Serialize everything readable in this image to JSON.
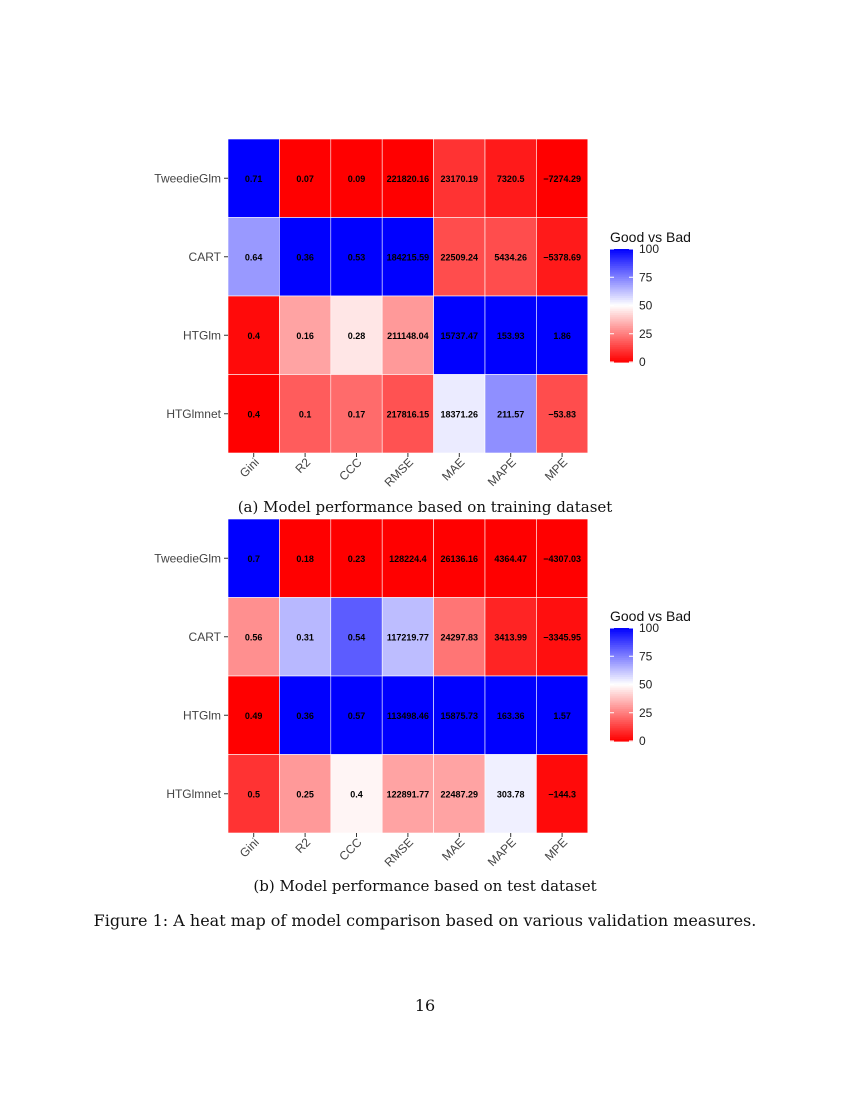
{
  "figure": {
    "caption": "Figure 1: A heat map of model comparison based on various validation measures.",
    "page_number": "16"
  },
  "legend": {
    "title": "Good vs Bad",
    "ticks": [
      "100",
      "75",
      "50",
      "25",
      "0"
    ],
    "colors": {
      "low": "#ff0000",
      "mid": "#ffffff",
      "high": "#0000ff"
    }
  },
  "panels": [
    {
      "caption": "(a) Model performance based on training dataset"
    },
    {
      "caption": "(b) Model performance based on test dataset"
    }
  ],
  "chart_data": [
    {
      "type": "heatmap",
      "title": "",
      "xlabel": "",
      "ylabel": "",
      "x_categories": [
        "Gini",
        "R2",
        "CCC",
        "RMSE",
        "MAE",
        "MAPE",
        "MPE"
      ],
      "y_categories": [
        "TweedieGlm",
        "CART",
        "HTGlm",
        "HTGlmnet"
      ],
      "cell_labels": [
        [
          "0.71",
          "0.07",
          "0.09",
          "221820.16",
          "23170.19",
          "7320.5",
          "−7274.29"
        ],
        [
          "0.64",
          "0.36",
          "0.53",
          "184215.59",
          "22509.24",
          "5434.26",
          "−5378.69"
        ],
        [
          "0.4",
          "0.16",
          "0.28",
          "211148.04",
          "15737.47",
          "153.93",
          "1.86"
        ],
        [
          "0.4",
          "0.1",
          "0.17",
          "217816.15",
          "18371.26",
          "211.57",
          "−53.83"
        ]
      ],
      "scores": [
        [
          100,
          0,
          0,
          0,
          10,
          5,
          0
        ],
        [
          70,
          100,
          100,
          100,
          15,
          15,
          5
        ],
        [
          2,
          32,
          45,
          30,
          100,
          100,
          100
        ],
        [
          0,
          18,
          21,
          16,
          54,
          72,
          15
        ]
      ],
      "legend": {
        "title": "Good vs Bad",
        "ticks": [
          100,
          75,
          50,
          25,
          0
        ]
      }
    },
    {
      "type": "heatmap",
      "title": "",
      "xlabel": "",
      "ylabel": "",
      "x_categories": [
        "Gini",
        "R2",
        "CCC",
        "RMSE",
        "MAE",
        "MAPE",
        "MPE"
      ],
      "y_categories": [
        "TweedieGlm",
        "CART",
        "HTGlm",
        "HTGlmnet"
      ],
      "cell_labels": [
        [
          "0.7",
          "0.18",
          "0.23",
          "128224.4",
          "26136.16",
          "4364.47",
          "−4307.03"
        ],
        [
          "0.56",
          "0.31",
          "0.54",
          "117219.77",
          "24297.83",
          "3413.99",
          "−3345.95"
        ],
        [
          "0.49",
          "0.36",
          "0.57",
          "113498.46",
          "15875.73",
          "163.36",
          "1.57"
        ],
        [
          "0.5",
          "0.25",
          "0.4",
          "122891.77",
          "22487.29",
          "303.78",
          "−144.3"
        ]
      ],
      "scores": [
        [
          100,
          0,
          0,
          0,
          0,
          0,
          0
        ],
        [
          28,
          64,
          82,
          63,
          23,
          7,
          3
        ],
        [
          0,
          100,
          100,
          100,
          100,
          100,
          100
        ],
        [
          10,
          30,
          48,
          32,
          32,
          53,
          2
        ]
      ],
      "legend": {
        "title": "Good vs Bad",
        "ticks": [
          100,
          75,
          50,
          25,
          0
        ]
      }
    }
  ]
}
